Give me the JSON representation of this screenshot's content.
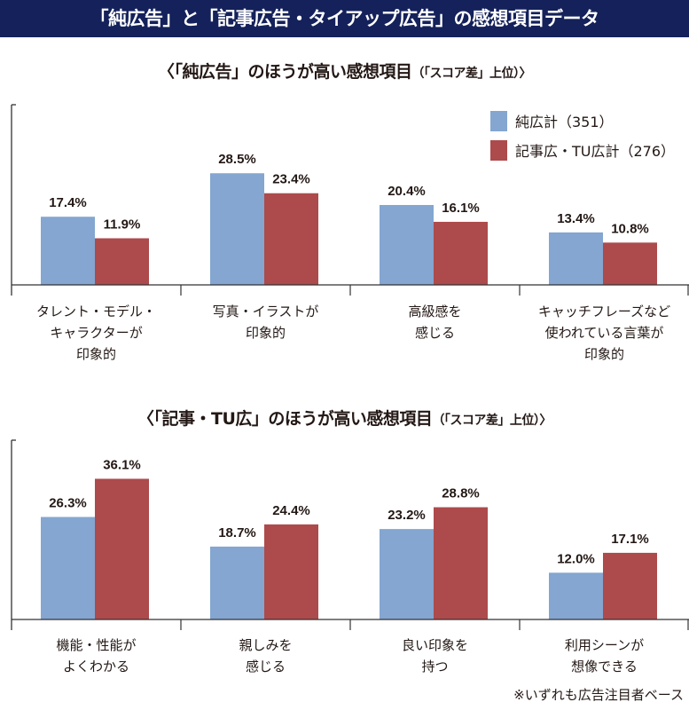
{
  "title": "「純広告」と「記事広告・タイアップ広告」の感想項目データ",
  "colors": {
    "series1": "#84a6d0",
    "series2": "#ad4a4b",
    "title_bg": "#14215a"
  },
  "legend": [
    {
      "label": "純広計（351）"
    },
    {
      "label": "記事広・TU広計（276）"
    }
  ],
  "footnote": "※いずれも広告注目者ベース",
  "chart_data": [
    {
      "type": "bar",
      "title": "〈「純広告」のほうが高い感想項目",
      "title_note": "（「スコア差」上位）〉",
      "categories": [
        [
          "タレント・モデル・",
          "キャラクターが",
          "印象的"
        ],
        [
          "写真・イラストが",
          "印象的"
        ],
        [
          "高級感を",
          "感じる"
        ],
        [
          "キャッチフレーズなど",
          "使われている言葉が",
          "印象的"
        ]
      ],
      "series": [
        {
          "name": "純広計（351）",
          "values": [
            17.4,
            28.5,
            20.4,
            13.4
          ]
        },
        {
          "name": "記事広・TU広計（276）",
          "values": [
            11.9,
            23.4,
            16.1,
            10.8
          ]
        }
      ],
      "ylim": [
        0,
        46
      ],
      "unit": "%"
    },
    {
      "type": "bar",
      "title": "〈「記事・TU広」のほうが高い感想項目",
      "title_note": "（「スコア差」上位）〉",
      "categories": [
        [
          "機能・性能が",
          "よくわかる"
        ],
        [
          "親しみを",
          "感じる"
        ],
        [
          "良い印象を",
          "持つ"
        ],
        [
          "利用シーンが",
          "想像できる"
        ]
      ],
      "series": [
        {
          "name": "純広計（351）",
          "values": [
            26.3,
            18.7,
            23.2,
            12.0
          ]
        },
        {
          "name": "記事広・TU広計（276）",
          "values": [
            36.1,
            24.4,
            28.8,
            17.1
          ]
        }
      ],
      "ylim": [
        0,
        46
      ],
      "unit": "%"
    }
  ]
}
